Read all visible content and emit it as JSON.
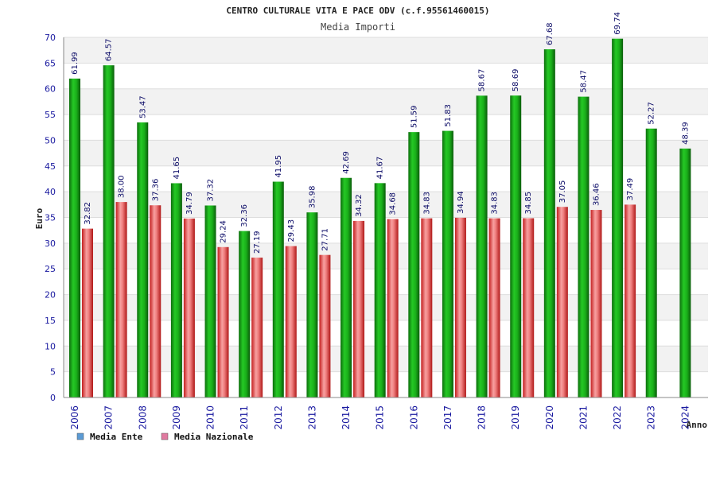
{
  "chart_data": {
    "type": "bar",
    "title": "CENTRO CULTURALE VITA E PACE ODV (c.f.95561460015)",
    "subtitle": "Media Importi",
    "xlabel": "Anno",
    "ylabel": "Euro",
    "ylim": [
      0,
      70
    ],
    "yticks": [
      0,
      5,
      10,
      15,
      20,
      25,
      30,
      35,
      40,
      45,
      50,
      55,
      60,
      65,
      70
    ],
    "grid": true,
    "legend_position": "bottom-left",
    "categories": [
      "2006",
      "2007",
      "2008",
      "2009",
      "2010",
      "2011",
      "2012",
      "2013",
      "2014",
      "2015",
      "2016",
      "2017",
      "2018",
      "2019",
      "2020",
      "2021",
      "2022",
      "2023",
      "2024"
    ],
    "series": [
      {
        "name": "Media Ente",
        "legend_color": "#5b9bd5",
        "bar_color": "#1aab1a",
        "values": [
          61.99,
          64.57,
          53.47,
          41.65,
          37.32,
          32.36,
          41.95,
          35.98,
          42.69,
          41.67,
          51.59,
          51.83,
          58.67,
          58.69,
          67.68,
          58.47,
          69.74,
          52.27,
          48.39
        ],
        "labels": [
          "61.99",
          "64.57",
          "53.47",
          "41.65",
          "37.32",
          "32.36",
          "41.95",
          "35.98",
          "42.69",
          "41.67",
          "51.59",
          "51.83",
          "58.67",
          "58.69",
          "67.68",
          "58.47",
          "69.74",
          "52.27",
          "48.39"
        ]
      },
      {
        "name": "Media Nazionale",
        "legend_color": "#e07aa0",
        "bar_color": "#e83a3a",
        "values": [
          32.82,
          38.0,
          37.36,
          34.79,
          29.24,
          27.19,
          29.43,
          27.71,
          34.32,
          34.68,
          34.83,
          34.94,
          34.83,
          34.85,
          37.05,
          36.46,
          37.49,
          null,
          null
        ],
        "labels": [
          "32.82",
          "38.00",
          "37.36",
          "34.79",
          "29.24",
          "27.19",
          "29.43",
          "27.71",
          "34.32",
          "34.68",
          "34.83",
          "34.94",
          "34.83",
          "34.85",
          "37.05",
          "36.46",
          "37.49",
          "",
          ""
        ]
      }
    ]
  }
}
